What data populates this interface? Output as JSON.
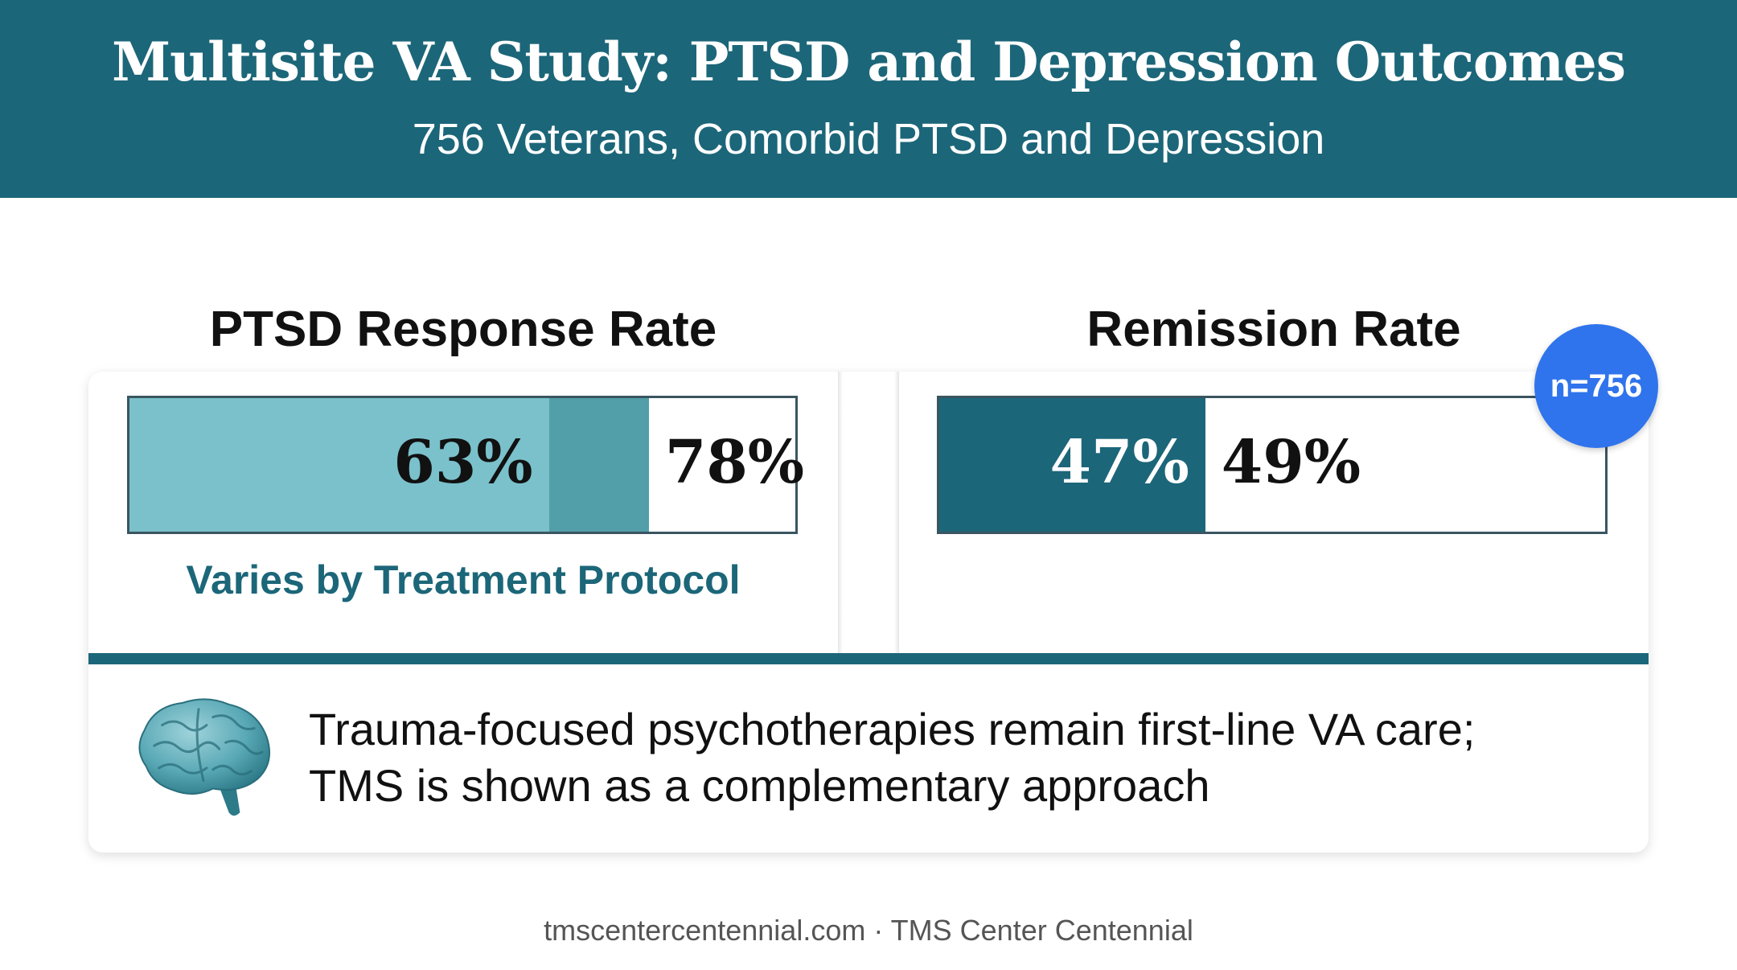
{
  "header": {
    "title": "Multisite VA Study: PTSD and Depression Outcomes",
    "subtitle": "756 Veterans, Comorbid PTSD and Depression"
  },
  "ptsd": {
    "title": "PTSD Response Rate",
    "low": 63,
    "high": 78,
    "low_label": "63%",
    "high_label": "78%",
    "note": "Varies by Treatment Protocol"
  },
  "remission": {
    "title": "Remission Rate",
    "low": 47,
    "high": 49,
    "low_label": "47%",
    "high_label": "49%",
    "badge": "n=756"
  },
  "statement": {
    "line1": "Trauma-focused psychotherapies remain first-line VA care;",
    "line2": "TMS is shown as a complementary approach"
  },
  "footer": "tmscentercentennial.com · TMS Center Centennial",
  "colors": {
    "header": "#1c6679",
    "bar_light": "#7ac1cb",
    "bar_mid": "#529ea9",
    "bar_dark": "#1c6679",
    "badge": "#2f74ec"
  },
  "icons": [
    "brain-icon"
  ]
}
